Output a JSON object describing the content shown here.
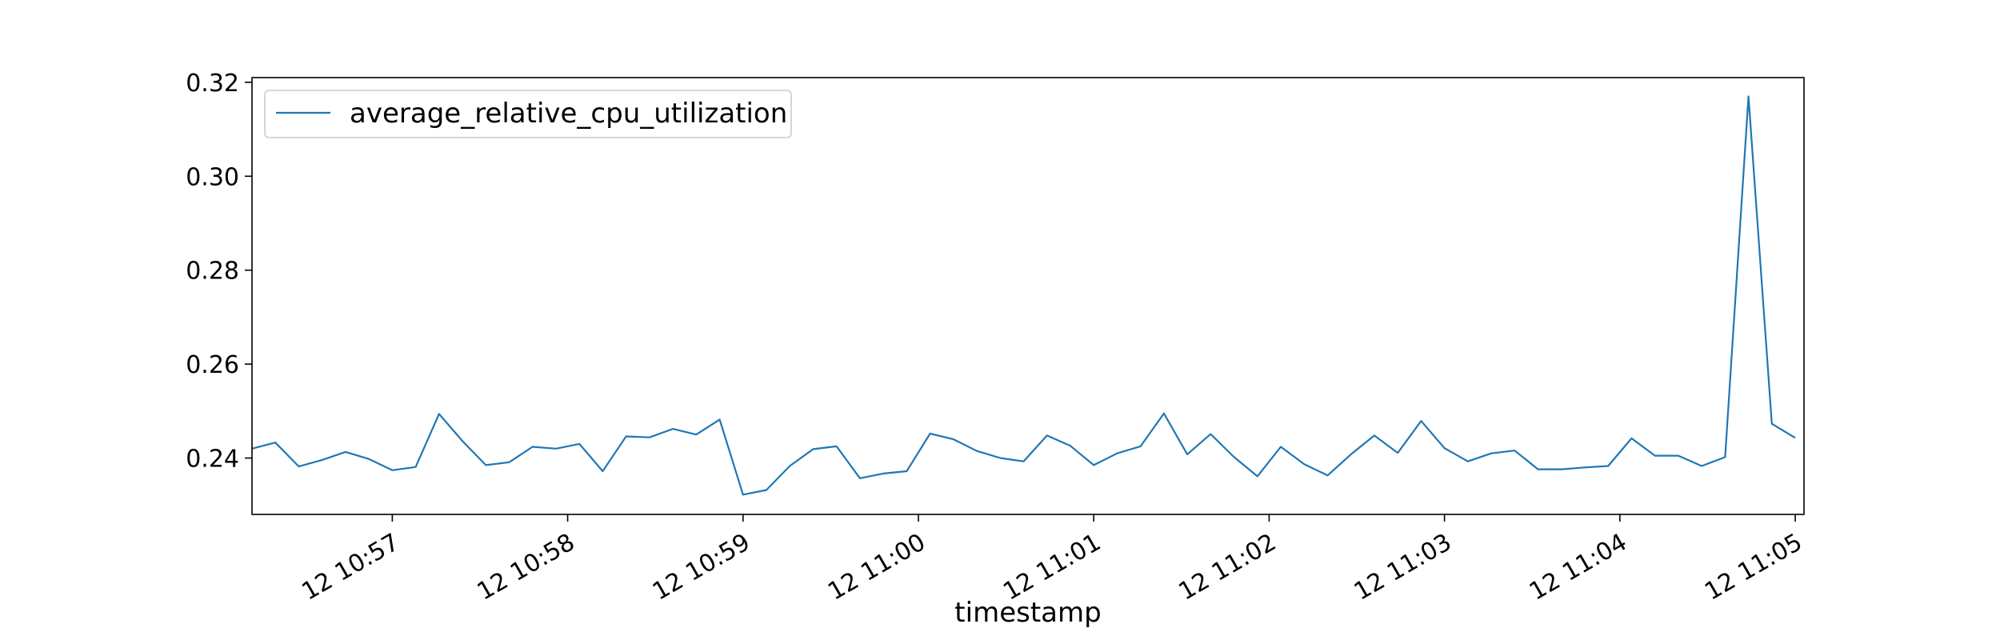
{
  "chart_data": {
    "type": "line",
    "title": "",
    "xlabel": "timestamp",
    "ylabel": "",
    "grid": false,
    "legend_position": "top-left",
    "line_color": "#1f77b4",
    "xlim": [
      "10:56:12",
      "11:05:03"
    ],
    "ylim": [
      0.228,
      0.321
    ],
    "x_ticks": [
      {
        "time": "10:57:00",
        "label": "12 10:57"
      },
      {
        "time": "10:58:00",
        "label": "12 10:58"
      },
      {
        "time": "10:59:00",
        "label": "12 10:59"
      },
      {
        "time": "11:00:00",
        "label": "12 11:00"
      },
      {
        "time": "11:01:00",
        "label": "12 11:01"
      },
      {
        "time": "11:02:00",
        "label": "12 11:02"
      },
      {
        "time": "11:03:00",
        "label": "12 11:03"
      },
      {
        "time": "11:04:00",
        "label": "12 11:04"
      },
      {
        "time": "11:05:00",
        "label": "12 11:05"
      }
    ],
    "y_ticks": [
      {
        "value": 0.24,
        "label": "0.24"
      },
      {
        "value": 0.26,
        "label": "0.26"
      },
      {
        "value": 0.28,
        "label": "0.28"
      },
      {
        "value": 0.3,
        "label": "0.30"
      },
      {
        "value": 0.32,
        "label": "0.32"
      }
    ],
    "series": [
      {
        "name": "average_relative_cpu_utilization",
        "points": [
          [
            "10:56:12",
            0.242
          ],
          [
            "10:56:20",
            0.2433
          ],
          [
            "10:56:28",
            0.2382
          ],
          [
            "10:56:36",
            0.2396
          ],
          [
            "10:56:44",
            0.2413
          ],
          [
            "10:56:52",
            0.2398
          ],
          [
            "10:57:00",
            0.2374
          ],
          [
            "10:57:08",
            0.2381
          ],
          [
            "10:57:16",
            0.2494
          ],
          [
            "10:57:24",
            0.2436
          ],
          [
            "10:57:32",
            0.2385
          ],
          [
            "10:57:40",
            0.2391
          ],
          [
            "10:57:48",
            0.2424
          ],
          [
            "10:57:56",
            0.242
          ],
          [
            "10:58:04",
            0.243
          ],
          [
            "10:58:12",
            0.2372
          ],
          [
            "10:58:20",
            0.2446
          ],
          [
            "10:58:28",
            0.2444
          ],
          [
            "10:58:36",
            0.2462
          ],
          [
            "10:58:44",
            0.245
          ],
          [
            "10:58:52",
            0.2482
          ],
          [
            "10:59:00",
            0.2322
          ],
          [
            "10:59:08",
            0.2332
          ],
          [
            "10:59:16",
            0.2383
          ],
          [
            "10:59:24",
            0.2419
          ],
          [
            "10:59:32",
            0.2425
          ],
          [
            "10:59:40",
            0.2357
          ],
          [
            "10:59:48",
            0.2367
          ],
          [
            "10:59:56",
            0.2372
          ],
          [
            "11:00:04",
            0.2452
          ],
          [
            "11:00:12",
            0.244
          ],
          [
            "11:00:20",
            0.2415
          ],
          [
            "11:00:28",
            0.24
          ],
          [
            "11:00:36",
            0.2393
          ],
          [
            "11:00:44",
            0.2448
          ],
          [
            "11:00:52",
            0.2426
          ],
          [
            "11:01:00",
            0.2385
          ],
          [
            "11:01:08",
            0.241
          ],
          [
            "11:01:16",
            0.2425
          ],
          [
            "11:01:24",
            0.2495
          ],
          [
            "11:01:32",
            0.2408
          ],
          [
            "11:01:40",
            0.2451
          ],
          [
            "11:01:48",
            0.2402
          ],
          [
            "11:01:56",
            0.2361
          ],
          [
            "11:02:04",
            0.2424
          ],
          [
            "11:02:12",
            0.2387
          ],
          [
            "11:02:20",
            0.2363
          ],
          [
            "11:02:28",
            0.2408
          ],
          [
            "11:02:36",
            0.2448
          ],
          [
            "11:02:44",
            0.2411
          ],
          [
            "11:02:52",
            0.2479
          ],
          [
            "11:03:00",
            0.2421
          ],
          [
            "11:03:08",
            0.2393
          ],
          [
            "11:03:16",
            0.241
          ],
          [
            "11:03:24",
            0.2416
          ],
          [
            "11:03:32",
            0.2376
          ],
          [
            "11:03:40",
            0.2376
          ],
          [
            "11:03:48",
            0.238
          ],
          [
            "11:03:56",
            0.2383
          ],
          [
            "11:04:04",
            0.2442
          ],
          [
            "11:04:12",
            0.2405
          ],
          [
            "11:04:20",
            0.2405
          ],
          [
            "11:04:28",
            0.2383
          ],
          [
            "11:04:36",
            0.2402
          ],
          [
            "11:04:44",
            0.317
          ],
          [
            "11:04:52",
            0.2473
          ],
          [
            "11:05:00",
            0.2443
          ]
        ]
      }
    ]
  }
}
